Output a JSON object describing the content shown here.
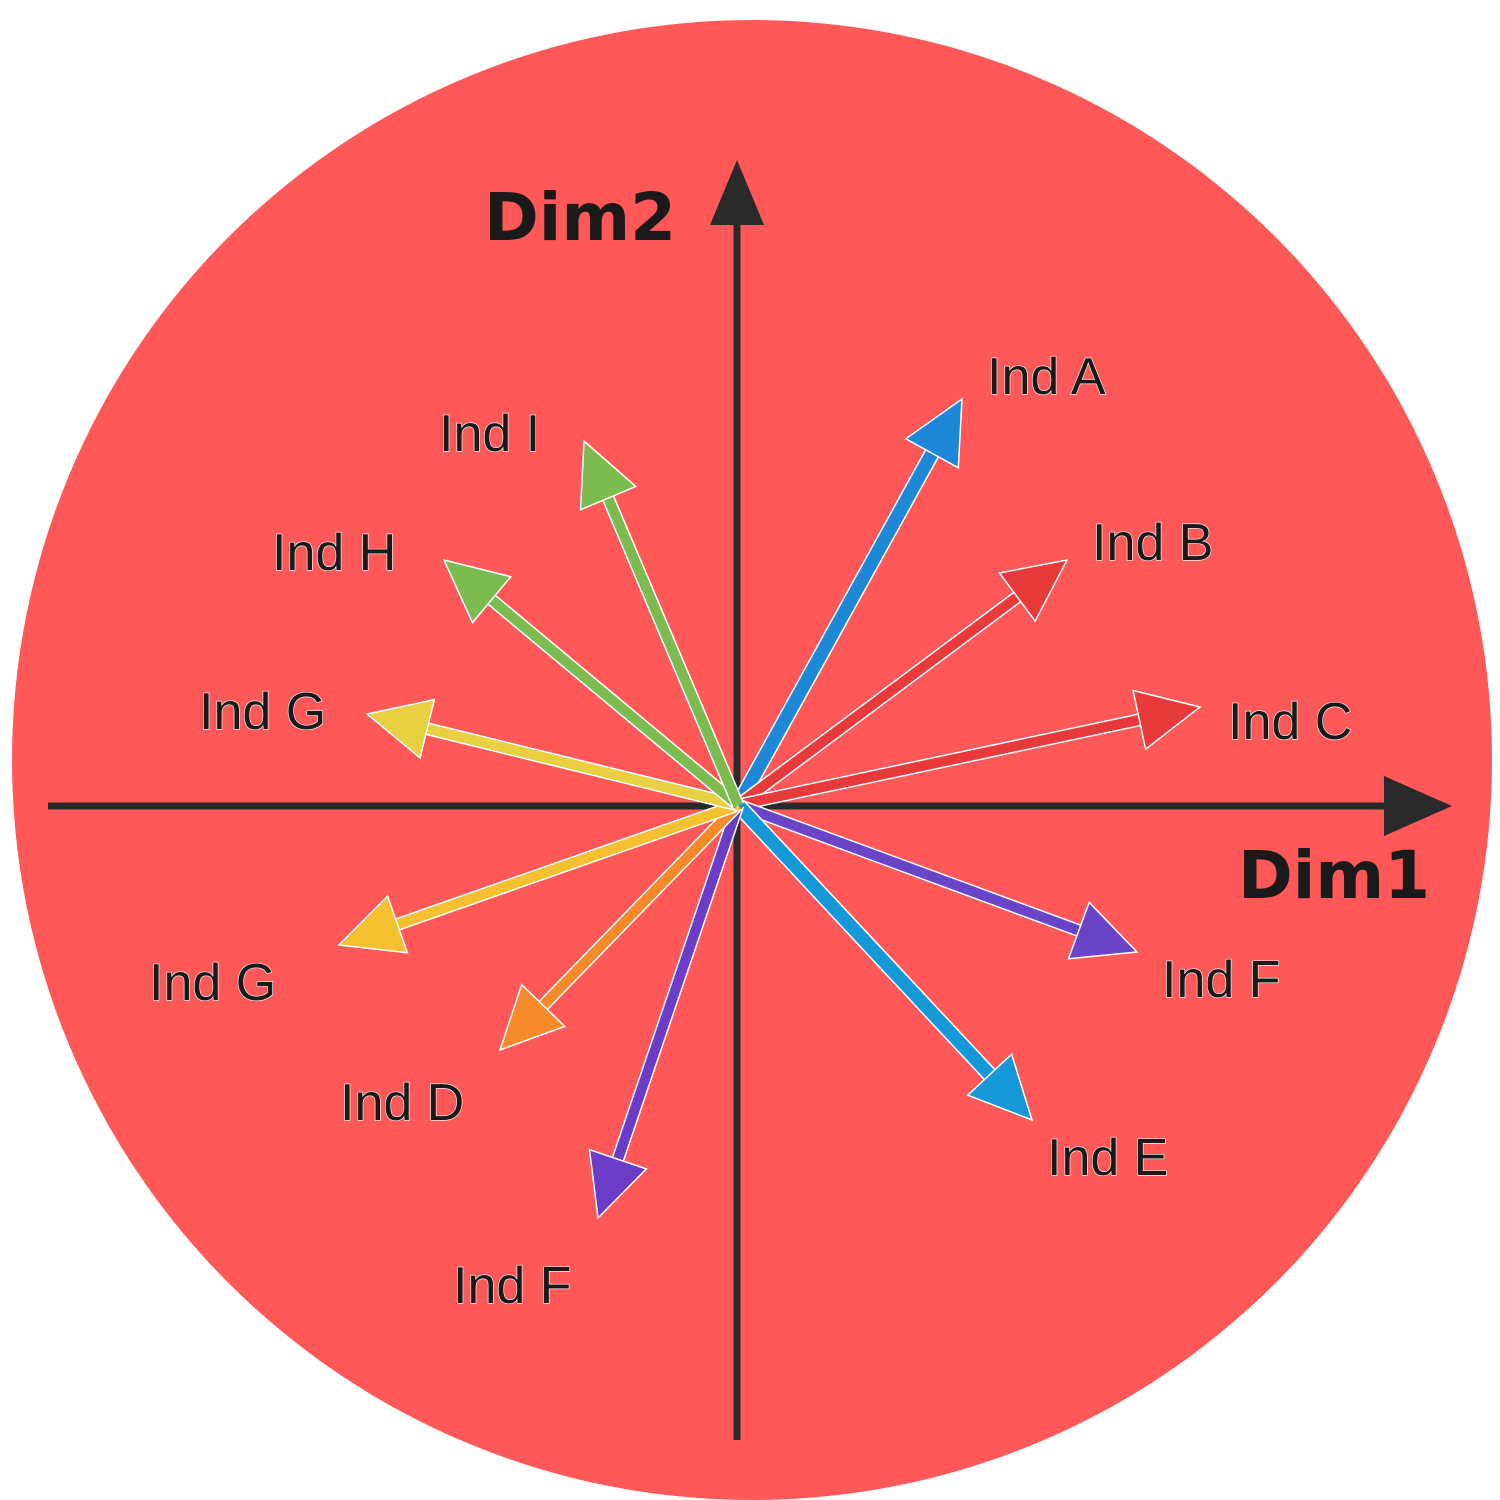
{
  "chart_data": {
    "type": "vector-biplot",
    "background_color": "#ff5858",
    "axis_color": "#2a2a2a",
    "xlabel": "Dim1",
    "ylabel": "Dim2",
    "vectors": [
      {
        "label": "Ind A",
        "x": 0.32,
        "y": 0.58,
        "color": "#1e88d8"
      },
      {
        "label": "Ind B",
        "x": 0.47,
        "y": 0.35,
        "color": "#e83a3a"
      },
      {
        "label": "Ind C",
        "x": 0.66,
        "y": 0.14,
        "color": "#e83a3a"
      },
      {
        "label": "Ind F",
        "x": 0.57,
        "y": -0.21,
        "color": "#6a44c8"
      },
      {
        "label": "Ind E",
        "x": 0.42,
        "y": -0.45,
        "color": "#1598d8"
      },
      {
        "label": "Ind F",
        "x": -0.2,
        "y": -0.59,
        "color": "#6a3cc8"
      },
      {
        "label": "Ind D",
        "x": -0.34,
        "y": -0.35,
        "color": "#f58a2a"
      },
      {
        "label": "Ind G",
        "x": -0.57,
        "y": -0.2,
        "color": "#f5c030"
      },
      {
        "label": "Ind G",
        "x": -0.53,
        "y": 0.13,
        "color": "#e8d040"
      },
      {
        "label": "Ind H",
        "x": -0.42,
        "y": 0.35,
        "color": "#7cbb50"
      },
      {
        "label": "Ind I",
        "x": -0.22,
        "y": 0.52,
        "color": "#7cbb50"
      }
    ]
  }
}
